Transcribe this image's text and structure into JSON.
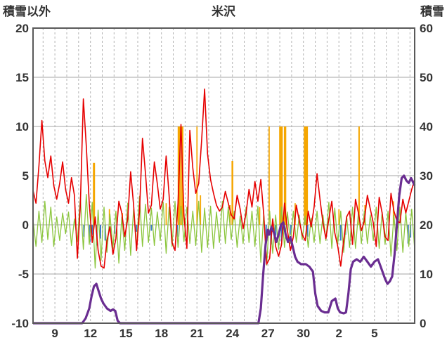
{
  "chart_data": {
    "type": "line",
    "title": "米沢",
    "left_axis": {
      "label": "積雪以外",
      "min": -10,
      "max": 20,
      "ticks": [
        20,
        15,
        10,
        5,
        0,
        -5,
        -10
      ]
    },
    "right_axis": {
      "label": "積雪",
      "min": 0,
      "max": 60,
      "ticks": [
        60,
        50,
        40,
        30,
        20,
        10,
        0
      ]
    },
    "x_axis": {
      "domain": [
        7.15,
        39.4
      ],
      "tick_days": [
        9,
        12,
        15,
        18,
        21,
        24,
        27,
        30,
        33,
        36
      ],
      "tick_labels": [
        "9",
        "12",
        "15",
        "18",
        "21",
        "24",
        "27",
        "30",
        "2",
        "5"
      ],
      "day_grid_step": 1,
      "grid": "dashed-vertical-per-day"
    },
    "series": {
      "red_line": {
        "kind": "line",
        "axis": "left",
        "color": "#e60000",
        "width": 1.6,
        "x0": 7.15,
        "dx": 0.25,
        "values": [
          3.5,
          2.2,
          6.0,
          10.6,
          6.5,
          4.8,
          7.0,
          4.0,
          2.6,
          4.2,
          6.4,
          3.6,
          2.2,
          4.8,
          3.0,
          -3.4,
          2.0,
          12.8,
          8.0,
          2.2,
          -1.8,
          0.8,
          -2.6,
          -4.2,
          -4.4,
          -1.6,
          -0.2,
          -3.0,
          -1.4,
          2.4,
          1.2,
          -1.2,
          0.6,
          5.4,
          2.0,
          -2.6,
          1.4,
          8.8,
          5.2,
          1.2,
          2.0,
          6.4,
          4.2,
          1.6,
          2.6,
          7.0,
          3.0,
          -1.8,
          -2.6,
          2.2,
          10.2,
          1.0,
          -2.4,
          9.6,
          5.8,
          3.2,
          4.2,
          8.6,
          13.8,
          7.2,
          4.6,
          3.2,
          2.0,
          1.4,
          1.8,
          3.4,
          2.2,
          1.0,
          0.6,
          3.0,
          1.6,
          -0.4,
          1.2,
          3.6,
          1.8,
          4.4,
          2.4,
          4.6,
          1.0,
          -4.0,
          -3.4,
          0.6,
          -2.2,
          -3.2,
          -2.0,
          2.2,
          -0.6,
          -2.6,
          -1.2,
          2.0,
          0.4,
          -1.0,
          -1.6,
          1.4,
          -0.2,
          1.8,
          5.2,
          2.6,
          0.2,
          -1.4,
          0.6,
          2.4,
          -0.8,
          -2.2,
          -4.2,
          -1.6,
          0.8,
          1.4,
          -2.0,
          2.6,
          1.2,
          -0.6,
          0.4,
          3.0,
          1.6,
          0.2,
          -2.2,
          2.8,
          1.2,
          -1.2,
          -1.6,
          3.2,
          1.4,
          0.4,
          0.2,
          2.6,
          1.2,
          2.4,
          3.6,
          4.6
        ]
      },
      "green_line": {
        "kind": "line",
        "axis": "left",
        "color": "#8cc63e",
        "width": 1.3,
        "x0": 7.15,
        "dx": 0.25,
        "values": [
          0.5,
          -2.2,
          1.4,
          -1.8,
          2.4,
          -1.5,
          1.8,
          -2.2,
          0.8,
          -1.6,
          1.2,
          -0.9,
          1.3,
          -2.1,
          0.6,
          -1.7,
          2.8,
          -2.5,
          3.1,
          -2.0,
          2.3,
          -4.4,
          1.5,
          -3.6,
          1.8,
          -2.8,
          1.1,
          -2.4,
          1.4,
          -3.9,
          0.8,
          -2.6,
          2.2,
          -3.1,
          1.6,
          -2.3,
          2.9,
          -2.2,
          2.1,
          -1.8,
          1.7,
          -2.1,
          1.3,
          -1.6,
          2.3,
          -2.9,
          1.8,
          -2.2,
          2.4,
          -2.3,
          1.9,
          -1.7,
          1.8,
          -1.9,
          1.4,
          -2.1,
          2.4,
          -2.8,
          1.7,
          -2.3,
          1.9,
          -2.4,
          1.3,
          -1.8,
          2.4,
          -1.9,
          1.8,
          -1.5,
          1.4,
          -2.3,
          0.9,
          -1.9,
          1.8,
          -1.8,
          1.4,
          -2.2,
          1.9,
          -3.8,
          1.2,
          -4.1,
          1.4,
          -2.9,
          1.0,
          -2.5,
          1.8,
          -2.3,
          1.3,
          -1.9,
          1.4,
          -1.8,
          1.0,
          -1.5,
          0.9,
          -2.3,
          0.7,
          -1.8,
          1.4,
          -1.9,
          1.0,
          -1.6,
          2.3,
          -2.4,
          1.7,
          -1.9,
          1.4,
          -2.8,
          0.9,
          -2.3,
          1.8,
          -2.4,
          1.3,
          -1.9,
          1.4,
          -1.9,
          1.0,
          -1.6,
          1.8,
          -2.4,
          1.3,
          -2.0,
          1.4,
          -3.2,
          1.0,
          -2.6,
          1.8,
          -2.8,
          1.3,
          -2.2,
          1.6,
          -2.5
        ]
      },
      "orange_bars": {
        "kind": "bar",
        "axis": "left",
        "color": "#f5a600",
        "bars": [
          {
            "day": 12.3,
            "h": 6.3,
            "w": 0.18
          },
          {
            "day": 13.6,
            "h": 1.6,
            "w": 0.1
          },
          {
            "day": 14.7,
            "h": 1.2,
            "w": 0.1
          },
          {
            "day": 16.1,
            "h": 2.0,
            "w": 0.1
          },
          {
            "day": 18.4,
            "h": 2.2,
            "w": 0.1
          },
          {
            "day": 19.5,
            "h": 10,
            "w": 0.25
          },
          {
            "day": 19.75,
            "h": 10,
            "w": 0.2
          },
          {
            "day": 21.0,
            "h": 10,
            "w": 0.1
          },
          {
            "day": 21.3,
            "h": 3.0,
            "w": 0.1
          },
          {
            "day": 23.8,
            "h": 2.0,
            "w": 0.1
          },
          {
            "day": 24.0,
            "h": 6.5,
            "w": 0.15
          },
          {
            "day": 26.3,
            "h": 1.8,
            "w": 0.1
          },
          {
            "day": 27.1,
            "h": 10,
            "w": 0.1
          },
          {
            "day": 28.1,
            "h": 10,
            "w": 0.3
          },
          {
            "day": 28.45,
            "h": 10,
            "w": 0.2
          },
          {
            "day": 29.3,
            "h": 2.2,
            "w": 0.1
          },
          {
            "day": 30.2,
            "h": 10,
            "w": 0.35
          },
          {
            "day": 33.0,
            "h": 1.6,
            "w": 0.1
          },
          {
            "day": 34.7,
            "h": 10,
            "w": 0.12
          },
          {
            "day": 35.2,
            "h": 2.0,
            "w": 0.1
          },
          {
            "day": 37.6,
            "h": 2.4,
            "w": 0.1
          }
        ]
      },
      "blue_bars": {
        "kind": "bar",
        "axis": "left",
        "color": "#3c78c8",
        "bars": [
          {
            "day": 11.45,
            "h": -1.2,
            "w": 0.12
          },
          {
            "day": 11.95,
            "h": -1.8,
            "w": 0.12
          },
          {
            "day": 12.15,
            "h": -1.0,
            "w": 0.12
          },
          {
            "day": 12.55,
            "h": -2.1,
            "w": 0.12
          },
          {
            "day": 12.85,
            "h": -1.4,
            "w": 0.12
          },
          {
            "day": 13.25,
            "h": -1.6,
            "w": 0.12
          },
          {
            "day": 14.05,
            "h": -0.9,
            "w": 0.12
          },
          {
            "day": 15.9,
            "h": -0.7,
            "w": 0.12
          },
          {
            "day": 17.15,
            "h": -0.6,
            "w": 0.12
          },
          {
            "day": 19.35,
            "h": -1.2,
            "w": 0.12
          },
          {
            "day": 26.85,
            "h": -1.4,
            "w": 0.12
          },
          {
            "day": 27.25,
            "h": -2.0,
            "w": 0.12
          },
          {
            "day": 27.65,
            "h": -1.1,
            "w": 0.12
          },
          {
            "day": 28.15,
            "h": -1.7,
            "w": 0.12
          },
          {
            "day": 28.95,
            "h": -1.0,
            "w": 0.12
          },
          {
            "day": 30.35,
            "h": -1.2,
            "w": 0.12
          },
          {
            "day": 33.15,
            "h": -1.6,
            "w": 0.12
          },
          {
            "day": 33.55,
            "h": -1.0,
            "w": 0.12
          },
          {
            "day": 34.25,
            "h": -0.8,
            "w": 0.12
          },
          {
            "day": 38.85,
            "h": -1.9,
            "w": 0.12
          },
          {
            "day": 39.05,
            "h": -1.3,
            "w": 0.12
          }
        ]
      },
      "purple_line": {
        "kind": "line",
        "axis": "right",
        "color": "#6a2d91",
        "width": 3.2,
        "points": [
          [
            7.15,
            0
          ],
          [
            11.3,
            0
          ],
          [
            11.6,
            1
          ],
          [
            11.9,
            3
          ],
          [
            12.1,
            5.5
          ],
          [
            12.3,
            7.5
          ],
          [
            12.5,
            8
          ],
          [
            12.7,
            6.5
          ],
          [
            12.9,
            5
          ],
          [
            13.1,
            4
          ],
          [
            13.4,
            3
          ],
          [
            13.7,
            2.5
          ],
          [
            13.9,
            2.8
          ],
          [
            14.1,
            2.5
          ],
          [
            14.3,
            0.5
          ],
          [
            14.5,
            0
          ],
          [
            26.2,
            0
          ],
          [
            26.4,
            3
          ],
          [
            26.6,
            10
          ],
          [
            26.8,
            16
          ],
          [
            27.0,
            19
          ],
          [
            27.1,
            18
          ],
          [
            27.3,
            19.5
          ],
          [
            27.5,
            18.5
          ],
          [
            27.7,
            16.5
          ],
          [
            27.9,
            18
          ],
          [
            28.1,
            20
          ],
          [
            28.3,
            20.5
          ],
          [
            28.5,
            18
          ],
          [
            28.7,
            16.5
          ],
          [
            28.9,
            17.5
          ],
          [
            29.1,
            15.5
          ],
          [
            29.3,
            13.5
          ],
          [
            29.5,
            12.5
          ],
          [
            29.8,
            12
          ],
          [
            30.2,
            12
          ],
          [
            30.5,
            11.5
          ],
          [
            30.8,
            10.5
          ],
          [
            31.0,
            6
          ],
          [
            31.2,
            3.5
          ],
          [
            31.5,
            2.5
          ],
          [
            31.8,
            2.2
          ],
          [
            32.1,
            2.2
          ],
          [
            32.4,
            4.5
          ],
          [
            32.7,
            5
          ],
          [
            32.9,
            3
          ],
          [
            33.1,
            2.2
          ],
          [
            33.4,
            2
          ],
          [
            33.6,
            2.2
          ],
          [
            33.8,
            6
          ],
          [
            34.0,
            11
          ],
          [
            34.2,
            12.5
          ],
          [
            34.5,
            13
          ],
          [
            34.8,
            12.5
          ],
          [
            35.1,
            13.5
          ],
          [
            35.4,
            12.5
          ],
          [
            35.7,
            11.5
          ],
          [
            36.0,
            12.5
          ],
          [
            36.3,
            13
          ],
          [
            36.6,
            11
          ],
          [
            36.9,
            9
          ],
          [
            37.1,
            8
          ],
          [
            37.3,
            8.5
          ],
          [
            37.5,
            9.5
          ],
          [
            37.7,
            14
          ],
          [
            37.9,
            20
          ],
          [
            38.1,
            26
          ],
          [
            38.3,
            29.5
          ],
          [
            38.5,
            30
          ],
          [
            38.7,
            29
          ],
          [
            38.9,
            28.5
          ],
          [
            39.1,
            29.5
          ],
          [
            39.3,
            28.5
          ],
          [
            39.4,
            28
          ]
        ]
      }
    },
    "style": {
      "frame_color": "#595959",
      "hgrid_color": "#a6a6a6",
      "vgrid_color": "#b3b3b3",
      "tick_text_color": "#333333"
    }
  }
}
